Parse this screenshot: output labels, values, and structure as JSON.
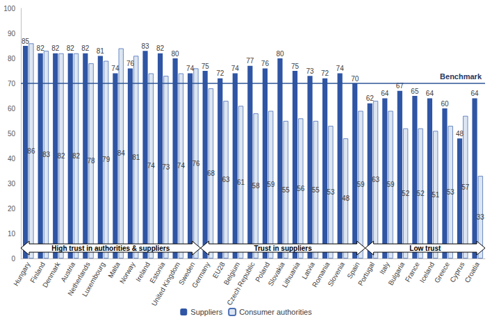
{
  "chart_data": {
    "type": "bar",
    "categories": [
      "Hungary",
      "Finland",
      "Denmark",
      "Austria",
      "Netherlands",
      "Luxembourg",
      "Malta",
      "Norway",
      "Ireland",
      "Estonia",
      "United Kingdom",
      "Sweden",
      "Germany",
      "EU28",
      "Belgium",
      "Czech Republic",
      "Poland",
      "Slovakia",
      "Lithuania",
      "Latvia",
      "Romania",
      "Slovenia",
      "Spain",
      "Portugal",
      "Italy",
      "Bulgaria",
      "France",
      "Iceland",
      "Greece",
      "Cyprus",
      "Croatia"
    ],
    "series": [
      {
        "name": "Suppliers",
        "color": "#2f55a4",
        "values": [
          85,
          82,
          82,
          82,
          82,
          81,
          74,
          76,
          83,
          82,
          80,
          74,
          75,
          72,
          74,
          77,
          76,
          80,
          75,
          73,
          72,
          74,
          70,
          62,
          64,
          67,
          65,
          64,
          60,
          48,
          64
        ]
      },
      {
        "name": "Consumer authorities",
        "color": "#dce6f2",
        "values": [
          86,
          83,
          82,
          82,
          78,
          79,
          84,
          81,
          74,
          73,
          74,
          76,
          68,
          63,
          61,
          58,
          59,
          55,
          56,
          55,
          53,
          48,
          59,
          63,
          59,
          52,
          52,
          51,
          53,
          57,
          33
        ]
      }
    ],
    "ylim": [
      0,
      100
    ],
    "yticks": [
      0,
      10,
      20,
      30,
      40,
      50,
      60,
      70,
      80,
      90,
      100
    ],
    "grid": false,
    "legend": "bottom",
    "data_labels": true,
    "annotations": {
      "benchmark": {
        "value": 70,
        "label": "Benchmark"
      },
      "groups": [
        {
          "label": "High trust in authorities & suppliers",
          "start": "Hungary",
          "end": "Sweden"
        },
        {
          "label": "Trust in suppliers",
          "start": "Germany",
          "end": "Spain"
        },
        {
          "label": "Low trust",
          "start": "Portugal",
          "end": "Croatia"
        }
      ]
    }
  }
}
